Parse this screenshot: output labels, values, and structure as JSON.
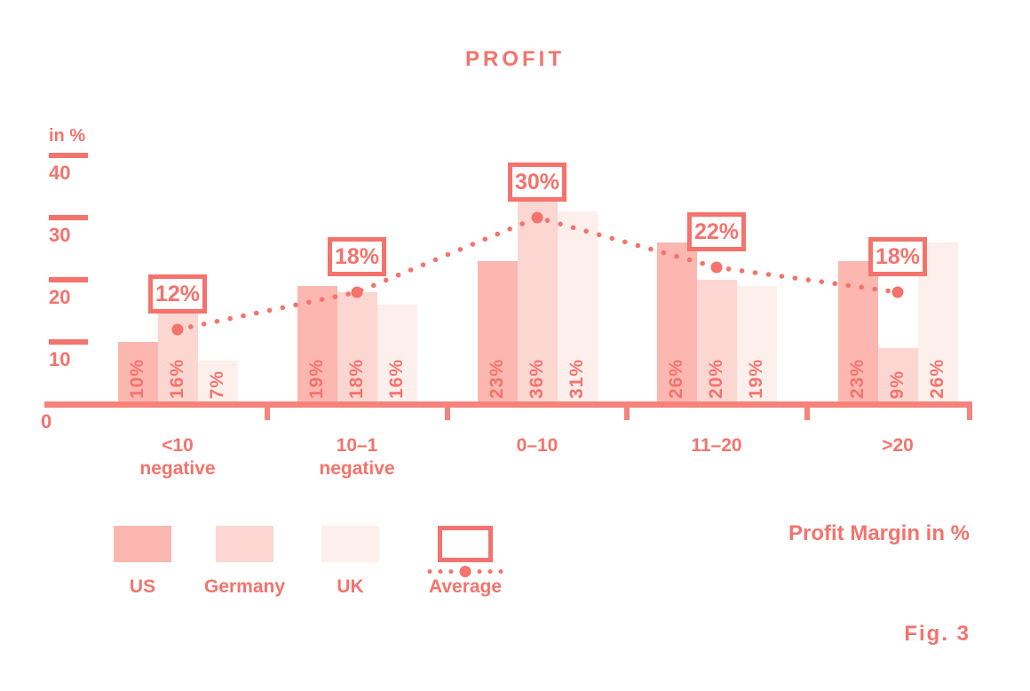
{
  "title": "PROFIT",
  "colors": {
    "accent": "#F4736C",
    "axis": "#F5837C",
    "us": "#FBB7B0",
    "germany": "#FCD6D0",
    "uk": "#FDEFEB"
  },
  "y_axis": {
    "unit_label": "in %",
    "ticks": [
      40,
      30,
      20,
      10
    ],
    "zero_label": "0"
  },
  "x_axis": {
    "title": "Profit Margin in %"
  },
  "fig_label": "Fig. 3",
  "chart_data": {
    "type": "bar",
    "title": "PROFIT",
    "ylabel": "in %",
    "xlabel": "Profit Margin in %",
    "ylim": [
      0,
      40
    ],
    "grid": false,
    "legend_position": "bottom",
    "value_label_suffix": "%",
    "categories": [
      "<10 negative",
      "10–1 negative",
      "0–10",
      "11–20",
      ">20"
    ],
    "category_label_lines": [
      [
        "<10",
        "negative"
      ],
      [
        "10–1",
        "negative"
      ],
      [
        "0–10"
      ],
      [
        "11–20"
      ],
      [
        ">20"
      ]
    ],
    "series": [
      {
        "name": "US",
        "color": "#FBB7B0",
        "values": [
          10,
          19,
          23,
          26,
          23
        ]
      },
      {
        "name": "Germany",
        "color": "#FCD6D0",
        "values": [
          16,
          18,
          36,
          20,
          9
        ]
      },
      {
        "name": "UK",
        "color": "#FDEFEB",
        "values": [
          7,
          16,
          31,
          19,
          26
        ]
      }
    ],
    "average": {
      "name": "Average",
      "values": [
        12,
        18,
        30,
        22,
        18
      ]
    }
  }
}
